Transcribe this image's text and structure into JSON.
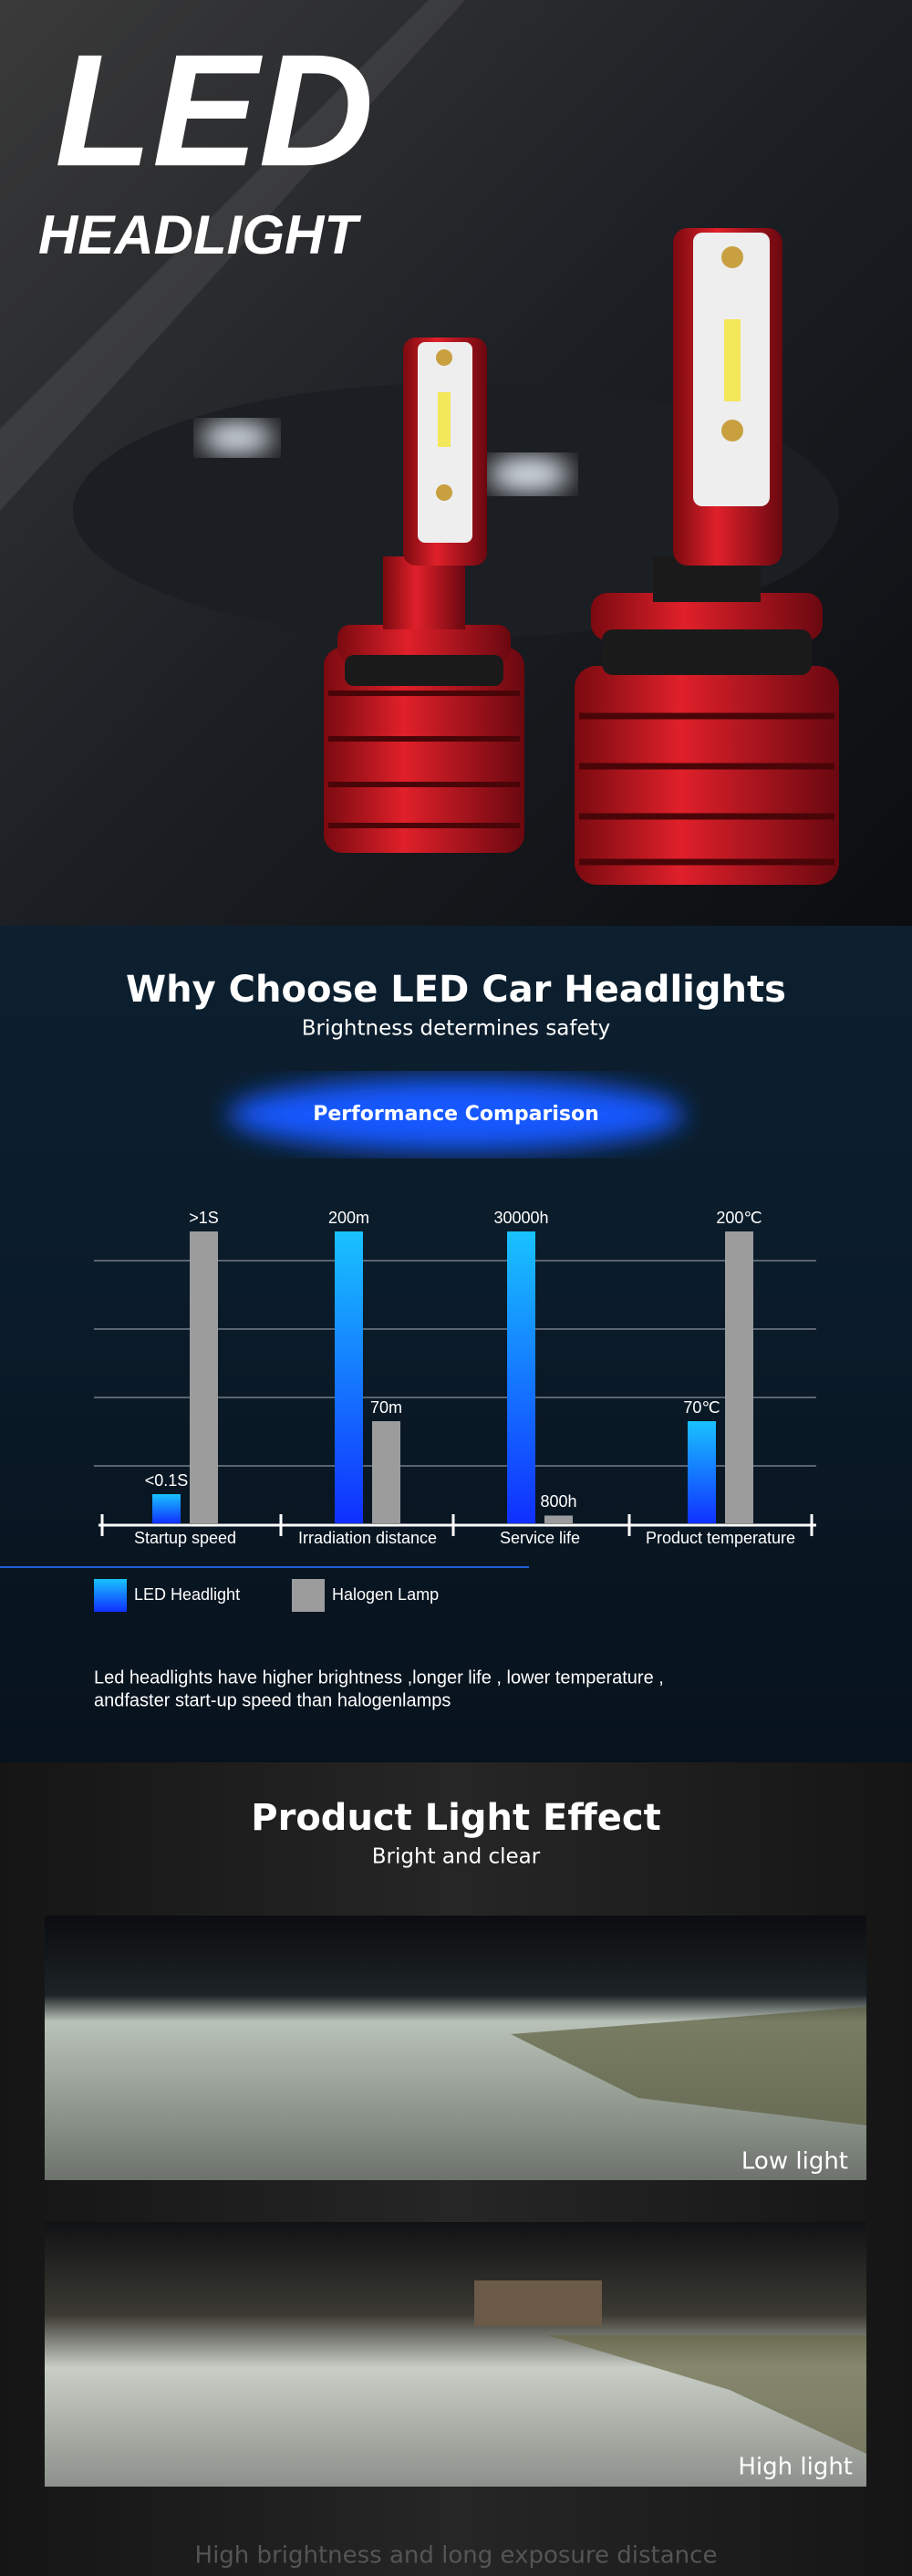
{
  "hero": {
    "title": "LED",
    "subtitle": "HEADLIGHT"
  },
  "comparison": {
    "title": "Why Choose LED Car Headlights",
    "subtitle": "Brightness determines safety",
    "badge": "Performance Comparison",
    "note": [
      "Led headlights have higher brightness ,longer life , lower temperature ,",
      "andfaster start-up speed than halogenlamps"
    ]
  },
  "chart_data": {
    "type": "bar",
    "categories": [
      "Startup speed",
      "Irradiation distance",
      "Service life",
      "Product temperature"
    ],
    "series": [
      {
        "name": "LED Headlight",
        "color": "#19c2ff",
        "values": [
          0.1,
          200,
          30000,
          70
        ],
        "value_labels": [
          "<0.1S",
          "200m",
          "30000h",
          "70℃"
        ]
      },
      {
        "name": "Halogen Lamp",
        "color": "#9c9c9c",
        "values": [
          1,
          70,
          800,
          200
        ],
        "value_labels": [
          ">1S",
          "70m",
          "800h",
          "200℃"
        ]
      }
    ]
  },
  "light_effect": {
    "title": "Product Light Effect",
    "subtitle": "Bright and clear",
    "photos": [
      {
        "label": "Low light"
      },
      {
        "label": "High light"
      }
    ],
    "footer": "High brightness and long exposure distance"
  }
}
